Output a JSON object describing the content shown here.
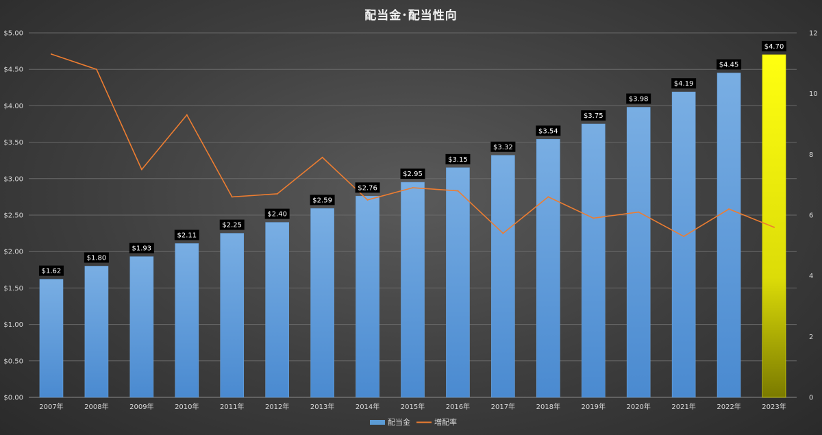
{
  "chart_data": {
    "type": "bar",
    "title": "配当金･配当性向",
    "categories": [
      "2007年",
      "2008年",
      "2009年",
      "2010年",
      "2011年",
      "2012年",
      "2013年",
      "2014年",
      "2015年",
      "2016年",
      "2017年",
      "2018年",
      "2019年",
      "2020年",
      "2021年",
      "2022年",
      "2023年"
    ],
    "series": [
      {
        "name": "配当金",
        "type": "bar",
        "axis": "left",
        "values": [
          1.62,
          1.8,
          1.93,
          2.11,
          2.25,
          2.4,
          2.59,
          2.76,
          2.95,
          3.15,
          3.32,
          3.54,
          3.75,
          3.98,
          4.19,
          4.45,
          4.7
        ],
        "data_labels": [
          "$1.62",
          "$1.80",
          "$1.93",
          "$2.11",
          "$2.25",
          "$2.40",
          "$2.59",
          "$2.76",
          "$2.95",
          "$3.15",
          "$3.32",
          "$3.54",
          "$3.75",
          "$3.98",
          "$4.19",
          "$4.45",
          "$4.70"
        ],
        "color": "#5b9bd5",
        "highlight_index": 16,
        "highlight_color": "#ffff00"
      },
      {
        "name": "増配率",
        "type": "line",
        "axis": "right",
        "values": [
          11.3,
          10.8,
          7.5,
          9.3,
          6.6,
          6.7,
          7.9,
          6.5,
          6.9,
          6.8,
          5.4,
          6.6,
          5.9,
          6.1,
          5.3,
          6.2,
          5.6
        ],
        "color": "#ed7d31"
      }
    ],
    "y_left": {
      "ylim": [
        0,
        5
      ],
      "tick_values": [
        0,
        0.5,
        1,
        1.5,
        2,
        2.5,
        3,
        3.5,
        4,
        4.5,
        5
      ],
      "tick_labels": [
        "$0.00",
        "$0.50",
        "$1.00",
        "$1.50",
        "$2.00",
        "$2.50",
        "$3.00",
        "$3.50",
        "$4.00",
        "$4.50",
        "$5.00"
      ]
    },
    "y_right": {
      "ylim": [
        0,
        12
      ],
      "tick_values": [
        0,
        2,
        4,
        6,
        8,
        10,
        12
      ],
      "tick_labels": [
        "0",
        "2",
        "4",
        "6",
        "8",
        "10",
        "12"
      ]
    },
    "grid": true,
    "legend": {
      "placement": "bottom",
      "entries": [
        "配当金",
        "増配率"
      ]
    }
  }
}
